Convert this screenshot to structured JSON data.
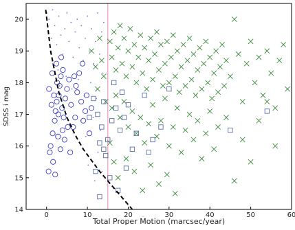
{
  "chart_data": {
    "type": "scatter",
    "title": "",
    "xlabel": "Total Proper Motion (marcsec/year)",
    "ylabel": "SDSS i mag",
    "xlim": [
      -5,
      60
    ],
    "ylim": [
      14,
      20.5
    ],
    "xticks": [
      0,
      10,
      20,
      30,
      40,
      50,
      60
    ],
    "yticks": [
      14,
      15,
      16,
      17,
      18,
      19,
      20
    ],
    "grid": false,
    "legend": "none",
    "colors": {
      "dots": "#7b7bd0",
      "circles": "#3b3bc4",
      "crosses": "#3a8a3a",
      "squares": "#5a6fa8",
      "curve": "#000000",
      "cut_line": "#f2a0c8"
    },
    "vline_x": 15,
    "curve_x": [
      -0.2,
      1,
      3,
      5,
      7,
      9,
      11,
      13,
      15,
      17,
      19,
      21
    ],
    "curve_y": [
      20.3,
      19.0,
      17.7,
      16.9,
      16.35,
      15.9,
      15.55,
      15.2,
      14.9,
      14.6,
      14.3,
      14.0
    ],
    "series": [
      {
        "marker": "dot",
        "points": [
          [
            0.1,
            20.2
          ],
          [
            0.2,
            19.8
          ],
          [
            0.4,
            19.6
          ],
          [
            0.6,
            20.0
          ],
          [
            1.2,
            19.4
          ],
          [
            1.5,
            20.3
          ],
          [
            2,
            19.8
          ],
          [
            2.5,
            19.2
          ],
          [
            3,
            20.1
          ],
          [
            3.5,
            19.5
          ],
          [
            4,
            18.9
          ],
          [
            4.5,
            19.7
          ],
          [
            5,
            20.2
          ],
          [
            5.5,
            19.3
          ],
          [
            6,
            19.9
          ],
          [
            6.5,
            18.8
          ],
          [
            7,
            19.6
          ],
          [
            7.5,
            20.0
          ],
          [
            8,
            19.1
          ],
          [
            8.5,
            19.8
          ],
          [
            9,
            18.7
          ],
          [
            9.5,
            19.4
          ],
          [
            10,
            20.1
          ],
          [
            10.5,
            19.0
          ],
          [
            11,
            19.7
          ],
          [
            11.5,
            18.6
          ],
          [
            12,
            19.3
          ],
          [
            12.5,
            20.2
          ],
          [
            13,
            18.9
          ],
          [
            13.5,
            19.6
          ],
          [
            14,
            19.9
          ],
          [
            1.5,
            18.6
          ],
          [
            2.8,
            18.4
          ],
          [
            3.2,
            17.9
          ],
          [
            4.8,
            18.2
          ],
          [
            6.2,
            17.8
          ],
          [
            7.8,
            18.1
          ],
          [
            9.2,
            17.6
          ],
          [
            10.8,
            18.0
          ],
          [
            12.2,
            17.5
          ],
          [
            13.8,
            18.3
          ],
          [
            8.4,
            16.8
          ],
          [
            9.6,
            16.3
          ],
          [
            11.4,
            16.9
          ],
          [
            12.6,
            15.8
          ],
          [
            13.2,
            16.5
          ],
          [
            10.2,
            15.4
          ],
          [
            11.8,
            14.9
          ],
          [
            13.6,
            15.2
          ]
        ]
      },
      {
        "marker": "circle",
        "points": [
          [
            0.5,
            15.2
          ],
          [
            0.8,
            15.8
          ],
          [
            1,
            16.0
          ],
          [
            1.5,
            16.4
          ],
          [
            2,
            16.8
          ],
          [
            2.2,
            17.1
          ],
          [
            2.5,
            17.4
          ],
          [
            3,
            17.6
          ],
          [
            3.2,
            17.9
          ],
          [
            3.5,
            18.2
          ],
          [
            4,
            18.4
          ],
          [
            1.2,
            17.3
          ],
          [
            1.8,
            17.6
          ],
          [
            2.6,
            18.0
          ],
          [
            3.8,
            17.2
          ],
          [
            4.2,
            16.9
          ],
          [
            4.6,
            17.5
          ],
          [
            5,
            17.8
          ],
          [
            5.5,
            18.1
          ],
          [
            6,
            17.3
          ],
          [
            6.5,
            16.6
          ],
          [
            7,
            16.9
          ],
          [
            7.5,
            17.7
          ],
          [
            8,
            18.3
          ],
          [
            8.5,
            17.4
          ],
          [
            9,
            16.8
          ],
          [
            9.5,
            17.1
          ],
          [
            2.8,
            16.3
          ],
          [
            3.4,
            15.9
          ],
          [
            1.6,
            15.5
          ],
          [
            2.1,
            15.1
          ],
          [
            4.4,
            16.2
          ],
          [
            5.2,
            16.6
          ],
          [
            5.8,
            15.8
          ],
          [
            0.6,
            17.8
          ],
          [
            1.4,
            18.3
          ],
          [
            2.4,
            18.6
          ],
          [
            3.6,
            18.8
          ],
          [
            6.8,
            18.2
          ],
          [
            7.2,
            17.9
          ],
          [
            8.8,
            18.6
          ],
          [
            9.8,
            17.6
          ],
          [
            10.5,
            16.4
          ],
          [
            11,
            17.2
          ],
          [
            2.9,
            17.0
          ],
          [
            3.9,
            16.5
          ]
        ]
      },
      {
        "marker": "x",
        "points": [
          [
            15.5,
            19.3
          ],
          [
            16,
            18.8
          ],
          [
            16.5,
            19.6
          ],
          [
            17,
            18.4
          ],
          [
            17.5,
            19.1
          ],
          [
            18,
            19.8
          ],
          [
            18.5,
            18.6
          ],
          [
            19,
            19.4
          ],
          [
            19.5,
            18.2
          ],
          [
            20,
            19.0
          ],
          [
            20.5,
            19.7
          ],
          [
            21,
            18.5
          ],
          [
            21.5,
            19.2
          ],
          [
            22,
            18.0
          ],
          [
            22.5,
            18.8
          ],
          [
            23,
            19.5
          ],
          [
            23.5,
            18.3
          ],
          [
            24,
            19.1
          ],
          [
            24.5,
            17.8
          ],
          [
            25,
            18.7
          ],
          [
            25.5,
            19.4
          ],
          [
            26,
            18.1
          ],
          [
            26.5,
            18.9
          ],
          [
            27,
            19.6
          ],
          [
            27.5,
            18.4
          ],
          [
            28,
            19.2
          ],
          [
            28.5,
            17.9
          ],
          [
            29,
            18.6
          ],
          [
            29.5,
            19.3
          ],
          [
            30,
            18.0
          ],
          [
            30.5,
            18.8
          ],
          [
            31,
            19.5
          ],
          [
            31.5,
            18.2
          ],
          [
            32,
            19.0
          ],
          [
            32.5,
            17.7
          ],
          [
            33,
            18.5
          ],
          [
            33.5,
            19.2
          ],
          [
            34,
            17.9
          ],
          [
            34.5,
            18.7
          ],
          [
            35,
            19.4
          ],
          [
            35.5,
            18.1
          ],
          [
            36,
            18.9
          ],
          [
            36.5,
            17.6
          ],
          [
            37,
            18.4
          ],
          [
            37.5,
            19.1
          ],
          [
            38,
            17.8
          ],
          [
            38.5,
            18.6
          ],
          [
            39,
            19.3
          ],
          [
            39.5,
            18.0
          ],
          [
            40,
            18.8
          ],
          [
            40.5,
            17.5
          ],
          [
            41,
            18.3
          ],
          [
            41.5,
            19.0
          ],
          [
            42,
            17.7
          ],
          [
            42.5,
            18.5
          ],
          [
            43,
            19.2
          ],
          [
            43.5,
            17.9
          ],
          [
            44,
            18.7
          ],
          [
            45,
            18.2
          ],
          [
            46,
            20.0
          ],
          [
            47,
            18.9
          ],
          [
            48,
            17.4
          ],
          [
            49,
            18.6
          ],
          [
            50,
            19.3
          ],
          [
            51,
            18.0
          ],
          [
            52,
            18.8
          ],
          [
            53,
            17.6
          ],
          [
            54,
            19.0
          ],
          [
            55,
            18.3
          ],
          [
            56,
            17.2
          ],
          [
            57,
            18.7
          ],
          [
            58,
            19.2
          ],
          [
            59,
            17.8
          ],
          [
            16,
            17.2
          ],
          [
            17,
            17.6
          ],
          [
            18,
            16.9
          ],
          [
            19,
            17.4
          ],
          [
            20,
            16.6
          ],
          [
            21,
            17.1
          ],
          [
            22,
            16.4
          ],
          [
            23,
            16.9
          ],
          [
            24,
            16.1
          ],
          [
            25,
            16.7
          ],
          [
            26,
            17.3
          ],
          [
            27,
            16.3
          ],
          [
            28,
            16.8
          ],
          [
            29,
            17.5
          ],
          [
            30,
            16.0
          ],
          [
            31,
            16.6
          ],
          [
            32,
            17.2
          ],
          [
            33,
            15.8
          ],
          [
            34,
            16.5
          ],
          [
            35,
            17.0
          ],
          [
            36,
            16.2
          ],
          [
            37,
            16.8
          ],
          [
            38,
            15.6
          ],
          [
            39,
            16.4
          ],
          [
            40,
            17.1
          ],
          [
            41,
            15.9
          ],
          [
            42,
            16.6
          ],
          [
            44,
            16.9
          ],
          [
            46,
            14.9
          ],
          [
            48,
            16.2
          ],
          [
            50,
            15.5
          ],
          [
            52,
            16.8
          ],
          [
            54,
            17.4
          ],
          [
            56,
            16.0
          ],
          [
            15.5,
            16.1
          ],
          [
            16.5,
            15.5
          ],
          [
            17.5,
            15.0
          ],
          [
            19.5,
            15.6
          ],
          [
            21.5,
            15.2
          ],
          [
            23.5,
            14.6
          ],
          [
            25.5,
            15.4
          ],
          [
            27.5,
            14.8
          ],
          [
            29.5,
            15.1
          ],
          [
            31.5,
            14.5
          ],
          [
            11,
            19.0
          ],
          [
            12,
            18.5
          ],
          [
            13,
            19.4
          ],
          [
            14,
            18.2
          ],
          [
            12.5,
            17.8
          ],
          [
            13.5,
            18.7
          ],
          [
            14.5,
            17.4
          ]
        ]
      },
      {
        "marker": "square",
        "points": [
          [
            12.5,
            17.0
          ],
          [
            13.5,
            16.6
          ],
          [
            14,
            17.4
          ],
          [
            15,
            16.2
          ],
          [
            16,
            16.8
          ],
          [
            17,
            17.2
          ],
          [
            18,
            16.5
          ],
          [
            19,
            16.9
          ],
          [
            20,
            17.3
          ],
          [
            21,
            15.9
          ],
          [
            22,
            16.4
          ],
          [
            13,
            16.1
          ],
          [
            14.5,
            15.7
          ],
          [
            12,
            15.2
          ],
          [
            13,
            14.4
          ],
          [
            15.5,
            15.0
          ],
          [
            17.5,
            14.6
          ],
          [
            11.5,
            17.5
          ],
          [
            10.5,
            16.9
          ],
          [
            24,
            17.6
          ],
          [
            26,
            16.2
          ],
          [
            28,
            16.6
          ],
          [
            30,
            17.8
          ],
          [
            25,
            15.8
          ],
          [
            18.5,
            17.7
          ],
          [
            16.5,
            18.0
          ],
          [
            45,
            16.5
          ],
          [
            54,
            17.1
          ],
          [
            14,
            15.9
          ],
          [
            19.5,
            15.3
          ]
        ]
      }
    ]
  }
}
